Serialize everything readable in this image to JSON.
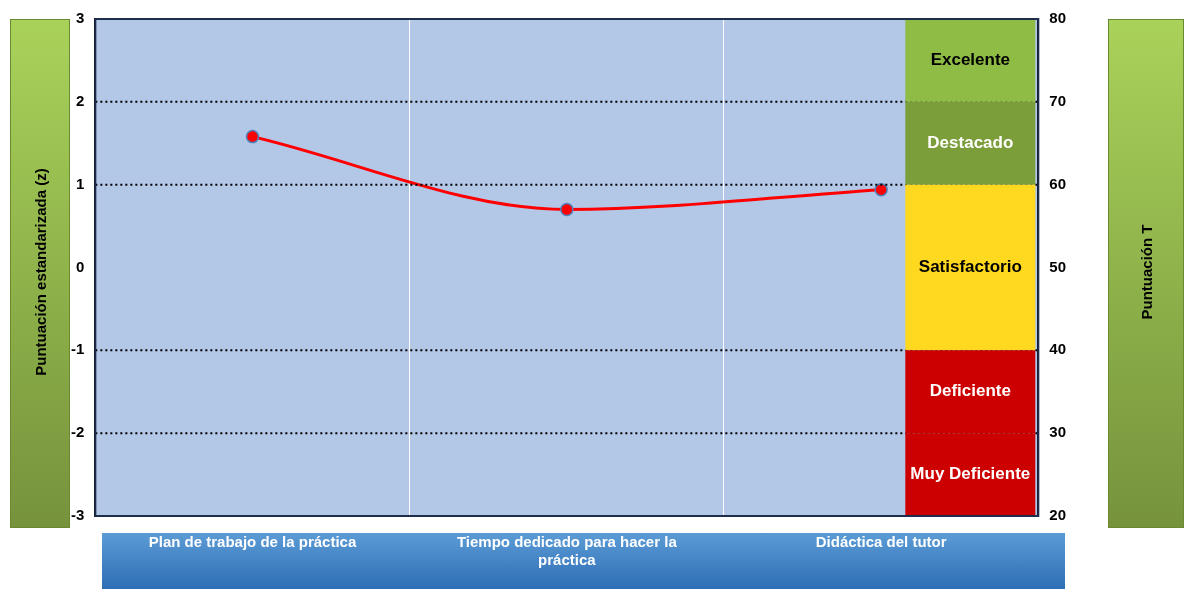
{
  "chart_data": {
    "type": "line",
    "ylabel": "Puntuación estandarizada  (z)",
    "y2label": "Puntuación T",
    "categories": [
      "Plan de trabajo de la práctica",
      "Tiempo dedicado para hacer la práctica",
      "Didáctica del tutor"
    ],
    "series": [
      {
        "color": "#ff0000",
        "values": [
          1.58,
          0.7,
          0.94
        ]
      }
    ],
    "ylim": [
      -3,
      3
    ],
    "yticks": [
      -3,
      -2,
      -1,
      0,
      1,
      2,
      3
    ],
    "y2lim": [
      20,
      80
    ],
    "y2ticks": [
      20,
      30,
      40,
      50,
      60,
      70,
      80
    ],
    "grid": "x",
    "legend": false,
    "marker": "circle",
    "line_style": "solid",
    "ref_lines": [
      {
        "axis": "y",
        "value": 2,
        "line_style": "dotted"
      },
      {
        "axis": "y",
        "value": 1,
        "line_style": "dotted"
      },
      {
        "axis": "y",
        "value": -1,
        "line_style": "dotted"
      },
      {
        "axis": "y",
        "value": -2,
        "line_style": "dotted"
      }
    ],
    "bands": [
      {
        "axis": "y2",
        "from": 70,
        "to": 80,
        "label": "Excelente",
        "color": "#8fbc45"
      },
      {
        "axis": "y2",
        "from": 60,
        "to": 70,
        "label": "Destacado",
        "color": "#7b9e3a"
      },
      {
        "axis": "y2",
        "from": 40,
        "to": 60,
        "label": "Satisfactorio",
        "color": "#ffd820"
      },
      {
        "axis": "y2",
        "from": 30,
        "to": 40,
        "label": "Deficiente",
        "color": "#cc0000"
      },
      {
        "axis": "y2",
        "from": 20,
        "to": 30,
        "label": "Muy Deficiente",
        "color": "#cc0000"
      }
    ]
  }
}
